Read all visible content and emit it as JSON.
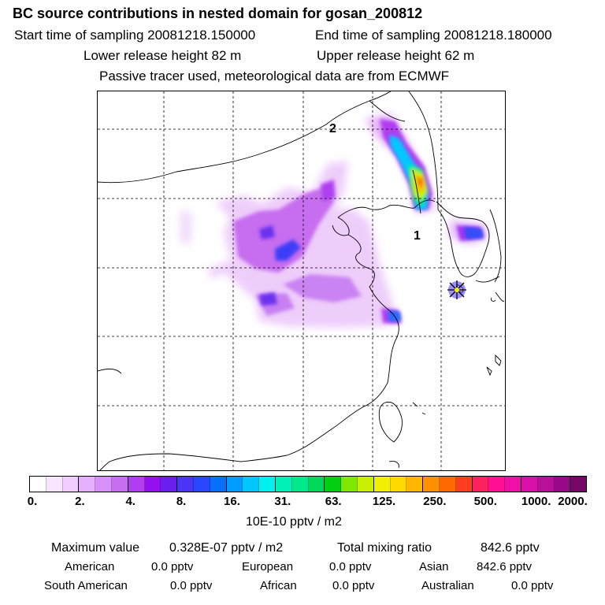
{
  "header": {
    "title": "BC  source contributions in nested domain for gosan_200812",
    "start_time": "Start time of sampling 20081218.150000",
    "end_time": "End time of sampling 20081218.180000",
    "lower_release": "Lower release height   82 m",
    "upper_release": "Upper release height   62 m",
    "note": "Passive tracer used, meteorological data are from ECMWF"
  },
  "map": {
    "labels": [
      {
        "id": "label-1",
        "text": "1"
      },
      {
        "id": "label-2",
        "text": "2"
      }
    ],
    "receptor_icon": "star-marker-icon"
  },
  "colorbar": {
    "colors": [
      "#ffffff",
      "#f8e6ff",
      "#f0ccff",
      "#e6b0ff",
      "#d690f8",
      "#c86cf0",
      "#b23cf0",
      "#9410f0",
      "#6a1ef0",
      "#4a34f8",
      "#2848ff",
      "#0870ff",
      "#009cff",
      "#00c8ff",
      "#00f0f0",
      "#00f0b8",
      "#00e888",
      "#00d858",
      "#00d010",
      "#80e800",
      "#c8f000",
      "#f0f000",
      "#ffd800",
      "#ffb800",
      "#ff9000",
      "#ff6800",
      "#ff3c20",
      "#ff2060",
      "#ff1090",
      "#f010a8",
      "#d810a8",
      "#b81098",
      "#980888",
      "#780868"
    ],
    "ticks": [
      "0.",
      "2.",
      "4.",
      "8.",
      "16.",
      "31.",
      "63.",
      "125.",
      "250.",
      "500.",
      "1000.",
      "2000."
    ],
    "units": "10E-10 pptv / m2"
  },
  "stats": {
    "max_label": "Maximum value",
    "max_value": "0.328E-07 pptv / m2",
    "total_label": "Total mixing ratio",
    "total_value": "842.6 pptv",
    "sources": [
      {
        "name": "American",
        "value": "0.0 pptv"
      },
      {
        "name": "European",
        "value": "0.0 pptv"
      },
      {
        "name": "Asian",
        "value": "842.6 pptv"
      },
      {
        "name": "South American",
        "value": "0.0 pptv"
      },
      {
        "name": "African",
        "value": "0.0 pptv"
      },
      {
        "name": "Australian",
        "value": "0.0 pptv"
      }
    ]
  }
}
